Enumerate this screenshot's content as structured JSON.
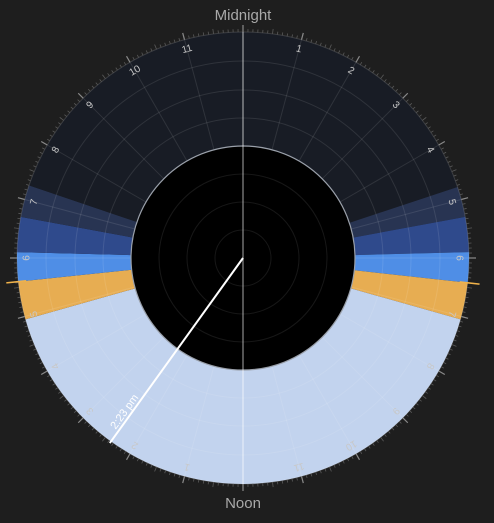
{
  "labels": {
    "top": "Midnight",
    "bottom": "Noon",
    "current_time": "2:23 pm"
  },
  "current_time_hours": 14.383,
  "hour_numbers": [
    "1",
    "2",
    "3",
    "4",
    "5",
    "6",
    "7",
    "8",
    "9",
    "10",
    "11",
    "1",
    "2",
    "3",
    "4",
    "5",
    "6",
    "7",
    "8",
    "9",
    "10",
    "11"
  ],
  "segments": [
    {
      "name": "night",
      "start": 0.0,
      "end": 4.78,
      "color": "#181c25"
    },
    {
      "name": "astronomical-twilight-morning",
      "start": 4.78,
      "end": 5.3,
      "color": "#283452"
    },
    {
      "name": "nautical-twilight-morning",
      "start": 5.3,
      "end": 5.9,
      "color": "#2f4a8c"
    },
    {
      "name": "civil-twilight-morning",
      "start": 5.9,
      "end": 6.42,
      "color": "#4f8ee6"
    },
    {
      "name": "golden-hour-morning",
      "start": 6.42,
      "end": 7.05,
      "color": "#e7ad52"
    },
    {
      "name": "daylight",
      "start": 7.05,
      "end": 16.95,
      "color": "#c2d3ee"
    },
    {
      "name": "golden-hour-evening",
      "start": 16.95,
      "end": 17.6,
      "color": "#e7ad52"
    },
    {
      "name": "civil-twilight-evening",
      "start": 17.6,
      "end": 18.1,
      "color": "#4f8ee6"
    },
    {
      "name": "nautical-twilight-evening",
      "start": 18.1,
      "end": 18.7,
      "color": "#2f4a8c"
    },
    {
      "name": "astronomical-twilight-evening",
      "start": 18.7,
      "end": 19.25,
      "color": "#283452"
    },
    {
      "name": "night-evening",
      "start": 19.25,
      "end": 24.0,
      "color": "#181c25"
    }
  ],
  "sun_markers": [
    6.42,
    17.6
  ],
  "colors": {
    "background": "#1e1e1e",
    "inner_disc": "#000000",
    "hand": "#ffffff",
    "marker": "#f0b24a"
  }
}
